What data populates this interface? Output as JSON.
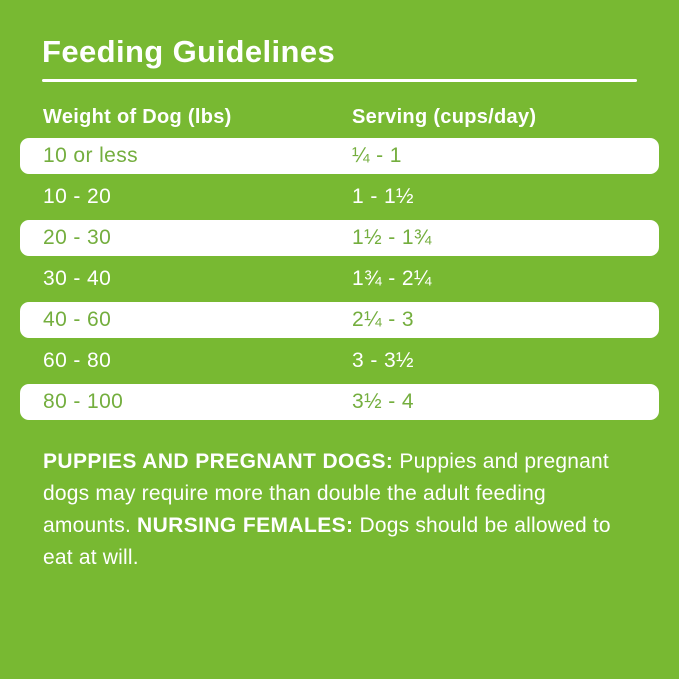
{
  "title": "Feeding Guidelines",
  "table": {
    "col1_header": "Weight of Dog (lbs)",
    "col2_header": "Serving (cups/day)",
    "rows": [
      {
        "weight": "10 or less",
        "serving": "¼ - 1",
        "variant": "white"
      },
      {
        "weight": "10 - 20",
        "serving": "1 - 1½",
        "variant": "green"
      },
      {
        "weight": "20 - 30",
        "serving": "1½ - 1¾",
        "variant": "white"
      },
      {
        "weight": "30 - 40",
        "serving": "1¾ - 2¼",
        "variant": "green"
      },
      {
        "weight": "40 - 60",
        "serving": "2¼ - 3",
        "variant": "white"
      },
      {
        "weight": "60 - 80",
        "serving": "3 - 3½",
        "variant": "green"
      },
      {
        "weight": "80 - 100",
        "serving": "3½ - 4",
        "variant": "white"
      }
    ]
  },
  "note": {
    "bold1": "PUPPIES AND PREGNANT DOGS:",
    "text1": "Puppies and pregnant dogs may require more than double the adult feeding amounts.",
    "bold2": "NURSING FEMALES:",
    "text2": "Dogs should be allowed to eat at will."
  },
  "colors": {
    "background_green": "#78b932",
    "row_text_green": "#74ae3e",
    "text_white": "#ffffff"
  }
}
